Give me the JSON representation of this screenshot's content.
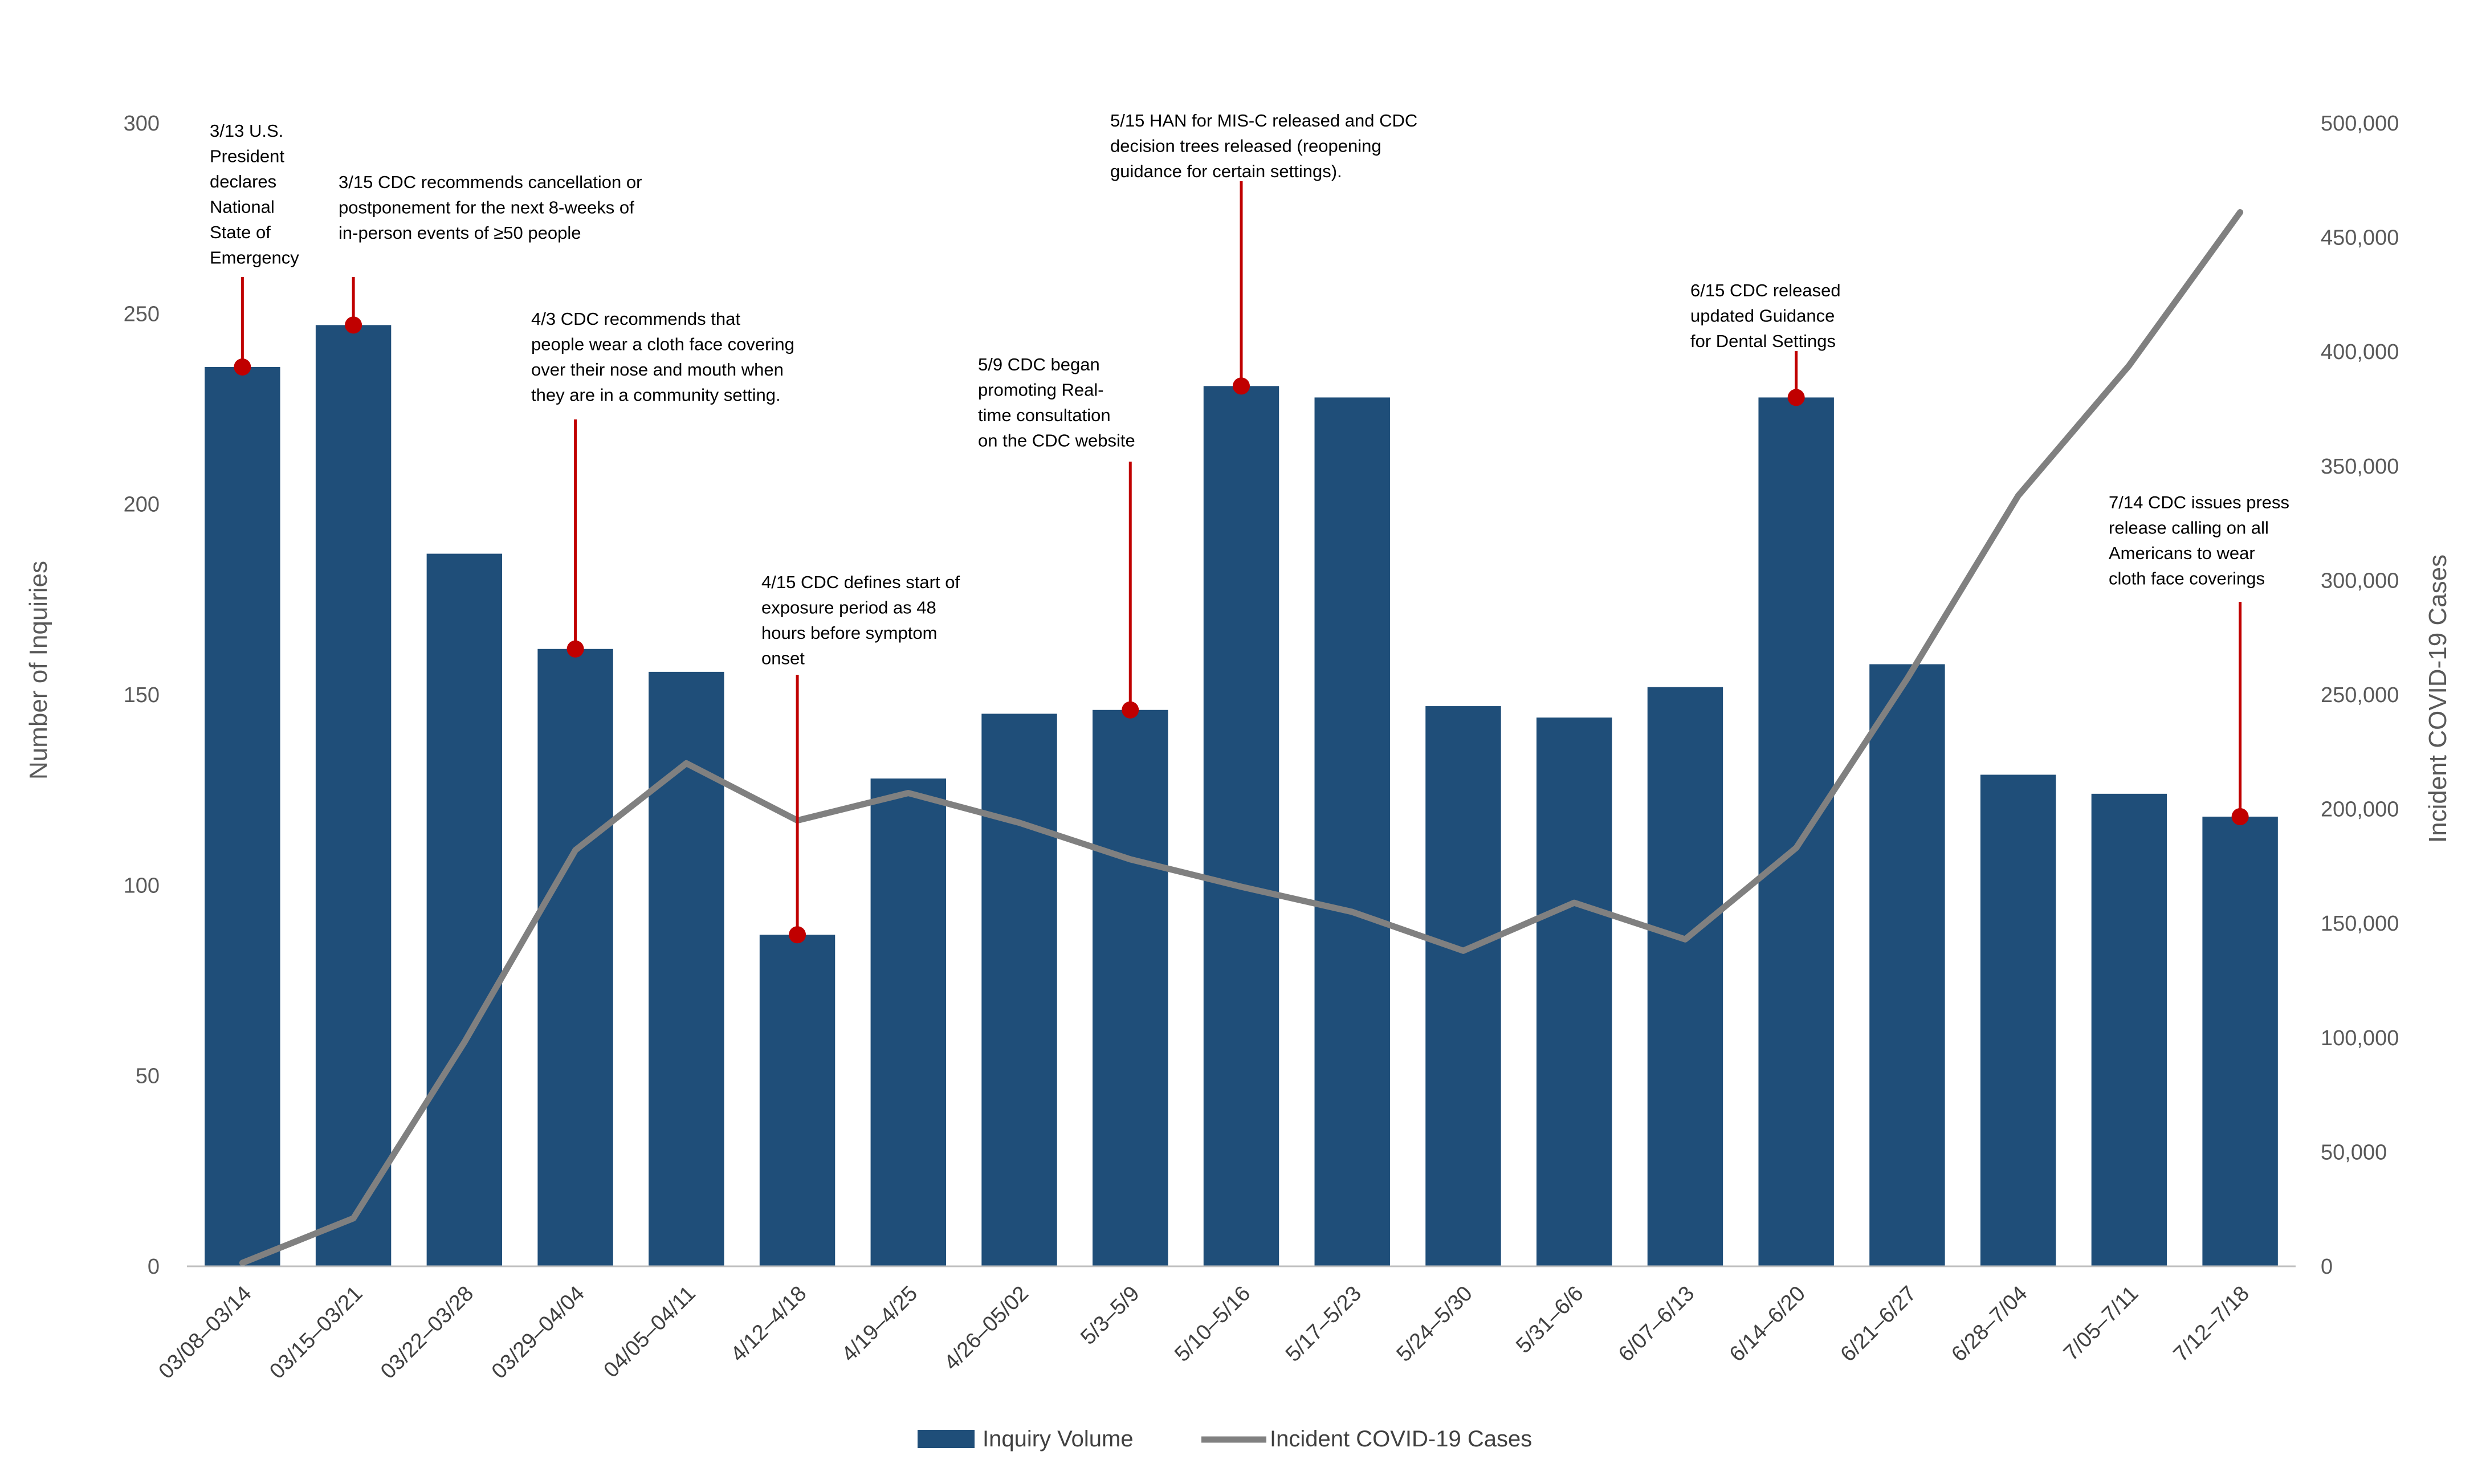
{
  "chart_data": {
    "type": "bar",
    "title": "",
    "categories": [
      "03/08–03/14",
      "03/15–03/21",
      "03/22–03/28",
      "03/29–04/04",
      "04/05–04/11",
      "4/12–4/18",
      "4/19–4/25",
      "4/26–05/02",
      "5/3–5/9",
      "5/10–5/16",
      "5/17–5/23",
      "5/24–5/30",
      "5/31–6/6",
      "6/07–6/13",
      "6/14–6/20",
      "6/21–6/27",
      "6/28–7/04",
      "7/05–7/11",
      "7/12–7/18"
    ],
    "series": [
      {
        "name": "Inquiry Volume",
        "type": "bar",
        "axis": "left",
        "color": "#1f4e79",
        "values": [
          236,
          247,
          187,
          162,
          156,
          87,
          128,
          145,
          146,
          231,
          228,
          147,
          144,
          152,
          228,
          158,
          129,
          124,
          118
        ]
      },
      {
        "name": "Incident COVID-19 Cases",
        "type": "line",
        "axis": "right",
        "color": "#808080",
        "values": [
          1500,
          21000,
          98000,
          182000,
          220000,
          195000,
          207000,
          194000,
          178000,
          166000,
          155000,
          138000,
          159000,
          143000,
          183000,
          257000,
          337000,
          394000,
          461000
        ]
      }
    ],
    "ylabel": "Number of Inquiries",
    "ylim": [
      0,
      300
    ],
    "yticks": [
      "0",
      "50",
      "100",
      "150",
      "200",
      "250",
      "300"
    ],
    "y2label": "Incident COVID-19 Cases",
    "y2lim": [
      0,
      500000
    ],
    "y2ticks": [
      "0",
      "50,000",
      "100,000",
      "150,000",
      "200,000",
      "250,000",
      "300,000",
      "350,000",
      "400,000",
      "450,000",
      "500,000"
    ],
    "grid": false,
    "legend": "bottom-center",
    "annotations": [
      {
        "category_index": 0,
        "value": 236,
        "lines": [
          "3/13 U.S.",
          "President",
          "declares",
          "National",
          "State of",
          "Emergency"
        ]
      },
      {
        "category_index": 1,
        "value": 247,
        "lines": [
          "3/15  CDC recommends cancellation or",
          "postponement for the next 8-weeks of",
          "in-person events of ≥50 people"
        ]
      },
      {
        "category_index": 3,
        "value": 162,
        "lines": [
          "4/3  CDC recommends that",
          "people wear a cloth face covering",
          "over their nose and mouth when",
          "they are in a community setting."
        ]
      },
      {
        "category_index": 5,
        "value": 87,
        "lines": [
          "4/15 CDC defines start of",
          "exposure period as 48",
          "hours before symptom",
          "onset"
        ]
      },
      {
        "category_index": 8,
        "value": 146,
        "lines": [
          "5/9  CDC began",
          "promoting Real-",
          "time consultation",
          "on the CDC website"
        ]
      },
      {
        "category_index": 9,
        "value": 231,
        "lines": [
          "5/15  HAN for MIS-C released and CDC",
          "decision trees released (reopening",
          "guidance for certain settings)."
        ]
      },
      {
        "category_index": 14,
        "value": 228,
        "lines": [
          "6/15  CDC released",
          "updated Guidance",
          "for Dental Settings"
        ]
      },
      {
        "category_index": 18,
        "value": 118,
        "lines": [
          "7/14 CDC issues press",
          "release calling on all",
          "Americans to wear",
          "cloth face coverings"
        ]
      }
    ],
    "marker_color": "#c00000"
  }
}
